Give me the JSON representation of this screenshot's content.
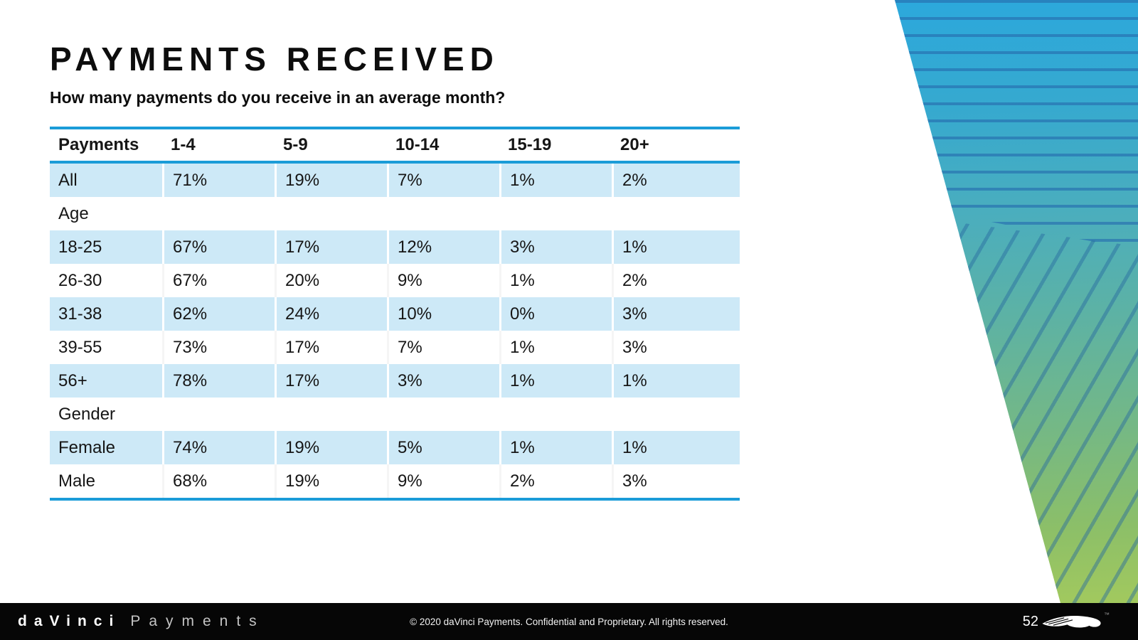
{
  "slide": {
    "title": "PAYMENTS RECEIVED",
    "subtitle": "How many payments do you receive in an average month?"
  },
  "chart_data": {
    "type": "table",
    "title": "Payments Received - How many payments do you receive in an average month?",
    "columns": [
      "Payments",
      "1-4",
      "5-9",
      "10-14",
      "15-19",
      "20+"
    ],
    "rows": [
      {
        "label": "All",
        "section": false,
        "shaded": true,
        "values": [
          "71%",
          "19%",
          "7%",
          "1%",
          "2%"
        ]
      },
      {
        "label": "Age",
        "section": true,
        "shaded": false,
        "values": []
      },
      {
        "label": "18-25",
        "section": false,
        "shaded": true,
        "values": [
          "67%",
          "17%",
          "12%",
          "3%",
          "1%"
        ]
      },
      {
        "label": "26-30",
        "section": false,
        "shaded": false,
        "values": [
          "67%",
          "20%",
          "9%",
          "1%",
          "2%"
        ]
      },
      {
        "label": "31-38",
        "section": false,
        "shaded": true,
        "values": [
          "62%",
          "24%",
          "10%",
          "0%",
          "3%"
        ]
      },
      {
        "label": "39-55",
        "section": false,
        "shaded": false,
        "values": [
          "73%",
          "17%",
          "7%",
          "1%",
          "3%"
        ]
      },
      {
        "label": "56+",
        "section": false,
        "shaded": true,
        "values": [
          "78%",
          "17%",
          "3%",
          "1%",
          "1%"
        ]
      },
      {
        "label": "Gender",
        "section": true,
        "shaded": false,
        "values": []
      },
      {
        "label": "Female",
        "section": false,
        "shaded": true,
        "values": [
          "74%",
          "19%",
          "5%",
          "1%",
          "1%"
        ]
      },
      {
        "label": "Male",
        "section": false,
        "shaded": false,
        "values": [
          "68%",
          "19%",
          "9%",
          "2%",
          "3%"
        ]
      }
    ]
  },
  "footer": {
    "brand_bold": "daVinci",
    "brand_light": "Payments",
    "copyright": "© 2020 daVinci Payments.  Confidential and Proprietary.  All rights reserved.",
    "page_number": "52",
    "trademark": "™"
  },
  "colors": {
    "accent_line_blue": "#1b9cd8",
    "row_shade_blue": "#cde9f7",
    "deco_top_blue": "#29a8e0",
    "deco_bottom_green": "#a2c95e",
    "deco_stripe_blue": "#26689f",
    "footer_black": "#060606"
  }
}
